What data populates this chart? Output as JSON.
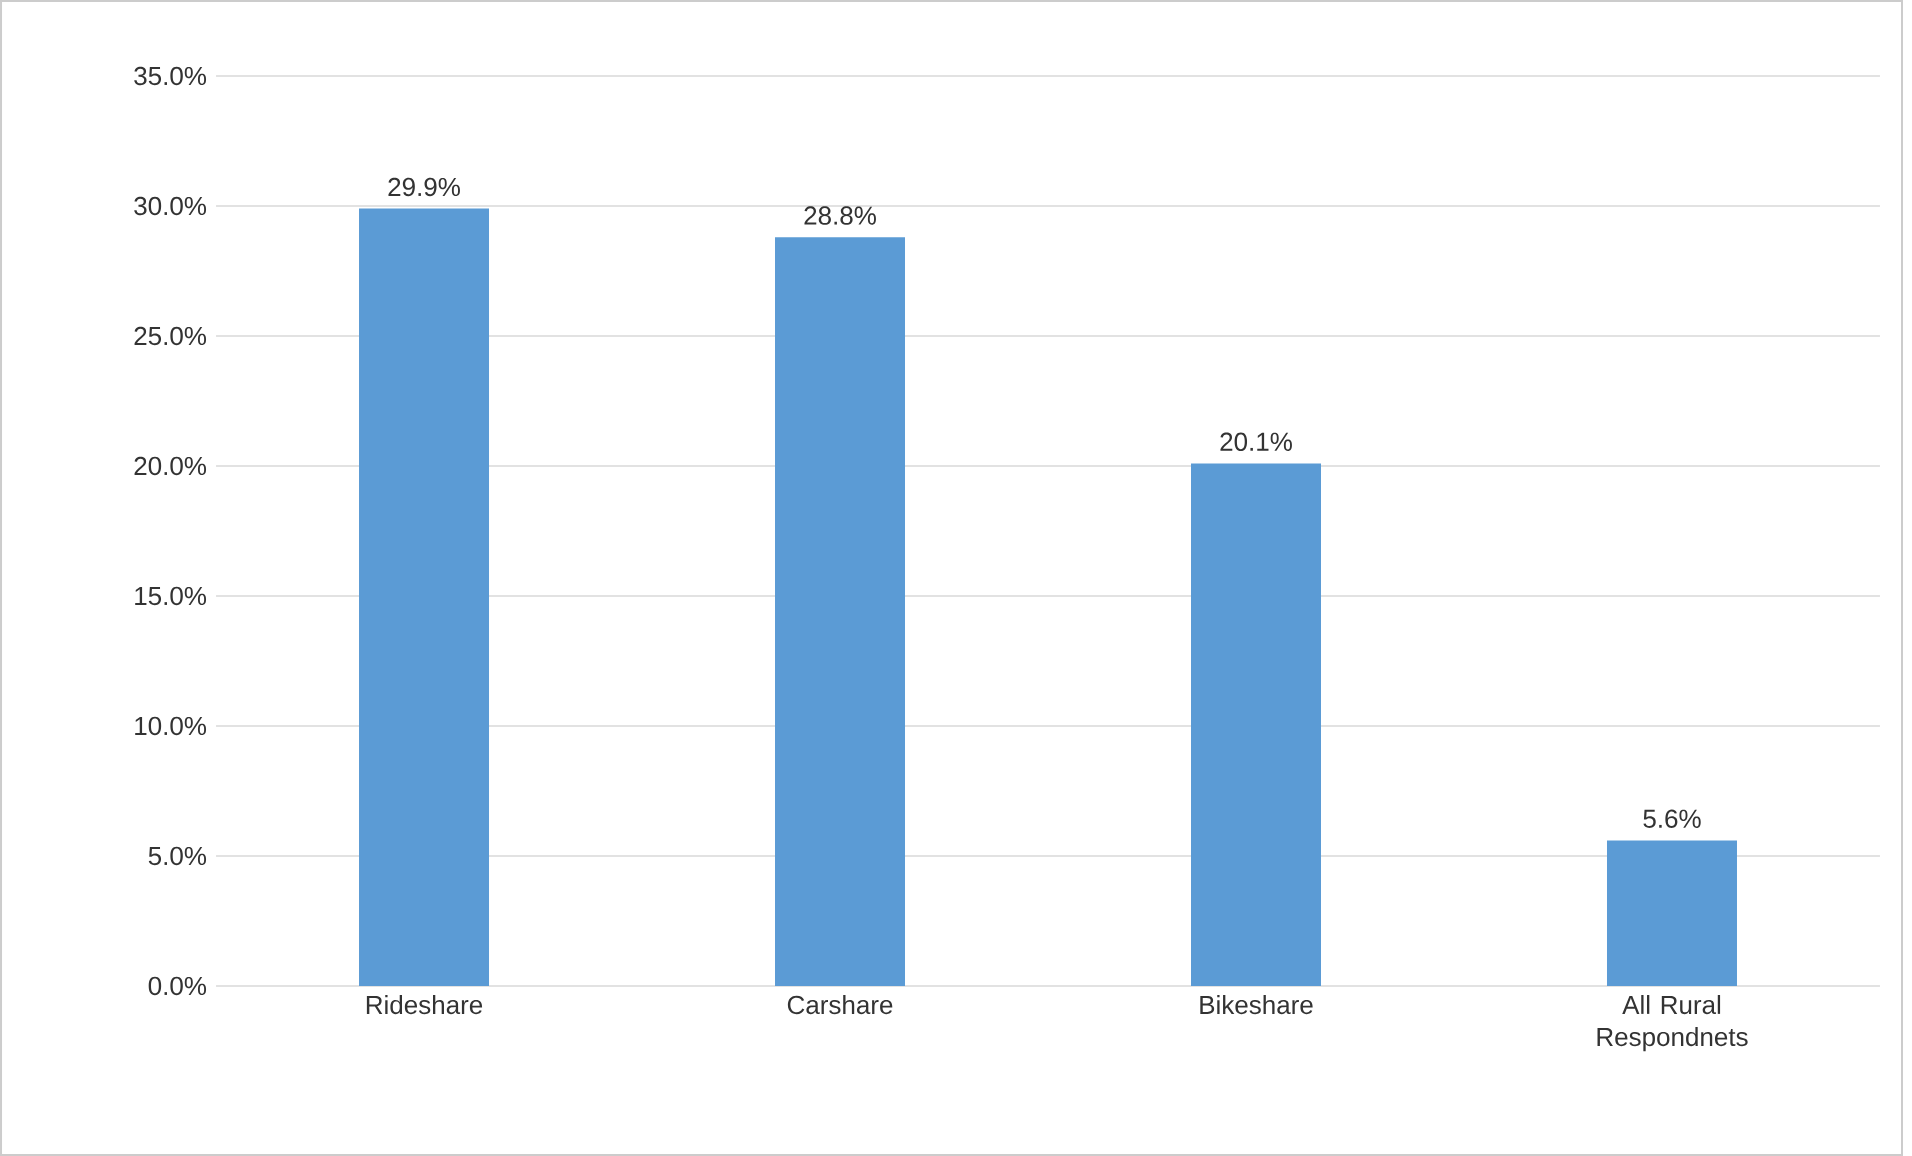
{
  "chart_data": {
    "type": "bar",
    "categories": [
      "Rideshare",
      "Carshare",
      "Bikeshare",
      "All Rural Respondnets"
    ],
    "values": [
      29.9,
      28.8,
      20.1,
      5.6
    ],
    "value_labels": [
      "29.9%",
      "28.8%",
      "20.1%",
      "5.6%"
    ],
    "color": "#5b9bd5",
    "ylim": [
      0,
      35
    ],
    "yticks": [
      {
        "value": 0,
        "label": "0.0%"
      },
      {
        "value": 5,
        "label": "5.0%"
      },
      {
        "value": 10,
        "label": "10.0%"
      },
      {
        "value": 15,
        "label": "15.0%"
      },
      {
        "value": 20,
        "label": "20.0%"
      },
      {
        "value": 25,
        "label": "25.0%"
      },
      {
        "value": 30,
        "label": "30.0%"
      },
      {
        "value": 35,
        "label": "35.0%"
      }
    ],
    "grid": "y"
  }
}
